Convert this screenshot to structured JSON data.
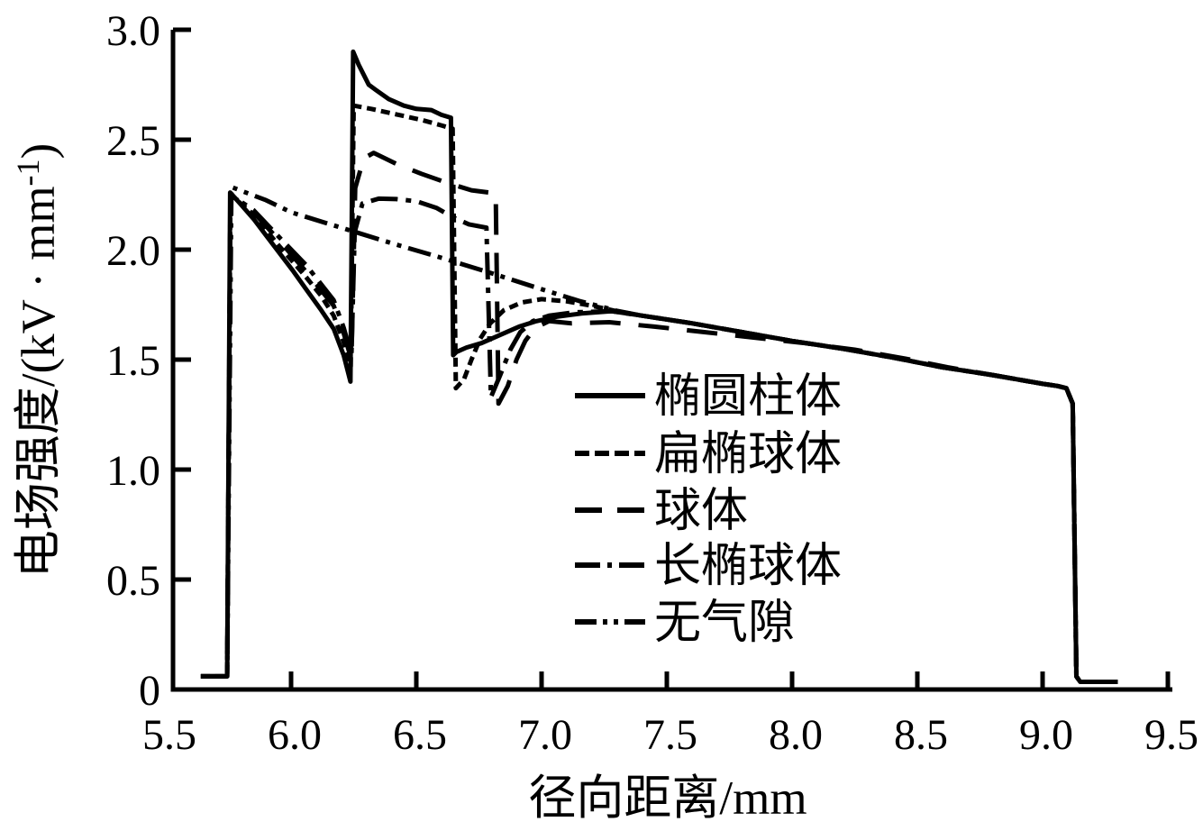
{
  "chart_data": {
    "type": "line",
    "title": "",
    "xlabel": "径向距离/mm",
    "ylabel": "电场强度/(kV·mm⁻¹)",
    "ylabel_parts": {
      "main": "电场强度/(kV · mm",
      "sup": "-1",
      "close": ")"
    },
    "xlim": [
      5.5,
      9.5
    ],
    "ylim": [
      0,
      3.0
    ],
    "grid": false,
    "legend_position": "inside-center-right",
    "x_ticks": [
      {
        "v": 5.5,
        "label": "5.5"
      },
      {
        "v": 6.0,
        "label": "6.0"
      },
      {
        "v": 6.5,
        "label": "6.5"
      },
      {
        "v": 7.0,
        "label": "7.0"
      },
      {
        "v": 7.5,
        "label": "7.5"
      },
      {
        "v": 8.0,
        "label": "8.0"
      },
      {
        "v": 8.5,
        "label": "8.5"
      },
      {
        "v": 9.0,
        "label": "9.0"
      },
      {
        "v": 9.5,
        "label": "9.5"
      }
    ],
    "y_ticks": [
      {
        "v": 0,
        "label": "0"
      },
      {
        "v": 0.5,
        "label": "0.5"
      },
      {
        "v": 1.0,
        "label": "1.0"
      },
      {
        "v": 1.5,
        "label": "1.5"
      },
      {
        "v": 2.0,
        "label": "2.0"
      },
      {
        "v": 2.5,
        "label": "2.5"
      },
      {
        "v": 3.0,
        "label": "3.0"
      }
    ],
    "legend": [
      {
        "label": "椭圆柱体",
        "style": "solid"
      },
      {
        "label": "扁椭球体",
        "style": "dotted"
      },
      {
        "label": "球体",
        "style": "dashed"
      },
      {
        "label": "长椭球体",
        "style": "dashdot"
      },
      {
        "label": "无气隙",
        "style": "dashdotdot"
      }
    ],
    "series": [
      {
        "name": "椭圆柱体",
        "style": "solid",
        "points": [
          [
            5.64,
            0.06
          ],
          [
            5.745,
            0.06
          ],
          [
            5.757,
            2.26
          ],
          [
            5.8,
            2.205
          ],
          [
            5.85,
            2.14
          ],
          [
            5.9,
            2.065
          ],
          [
            5.95,
            1.99
          ],
          [
            6.01,
            1.9
          ],
          [
            6.06,
            1.82
          ],
          [
            6.12,
            1.725
          ],
          [
            6.17,
            1.64
          ],
          [
            6.21,
            1.52
          ],
          [
            6.237,
            1.4
          ],
          [
            6.248,
            2.9
          ],
          [
            6.27,
            2.84
          ],
          [
            6.31,
            2.75
          ],
          [
            6.34,
            2.725
          ],
          [
            6.39,
            2.685
          ],
          [
            6.45,
            2.655
          ],
          [
            6.5,
            2.64
          ],
          [
            6.56,
            2.635
          ],
          [
            6.6,
            2.613
          ],
          [
            6.638,
            2.6
          ],
          [
            6.647,
            1.52
          ],
          [
            6.66,
            1.535
          ],
          [
            6.7,
            1.555
          ],
          [
            6.76,
            1.575
          ],
          [
            6.83,
            1.61
          ],
          [
            6.91,
            1.65
          ],
          [
            6.98,
            1.675
          ],
          [
            7.06,
            1.695
          ],
          [
            7.16,
            1.71
          ],
          [
            7.28,
            1.72
          ],
          [
            7.4,
            1.7
          ],
          [
            7.6,
            1.665
          ],
          [
            7.8,
            1.625
          ],
          [
            8.0,
            1.585
          ],
          [
            8.2,
            1.55
          ],
          [
            8.4,
            1.51
          ],
          [
            8.6,
            1.465
          ],
          [
            8.8,
            1.43
          ],
          [
            9.0,
            1.39
          ],
          [
            9.06,
            1.38
          ],
          [
            9.095,
            1.37
          ],
          [
            9.12,
            1.3
          ],
          [
            9.135,
            0.06
          ],
          [
            9.15,
            0.035
          ],
          [
            9.3,
            0.035
          ]
        ]
      },
      {
        "name": "扁椭球体",
        "style": "dotted",
        "points": [
          [
            5.64,
            0.06
          ],
          [
            5.745,
            0.06
          ],
          [
            5.758,
            2.25
          ],
          [
            5.85,
            2.16
          ],
          [
            5.95,
            2.02
          ],
          [
            6.06,
            1.875
          ],
          [
            6.12,
            1.79
          ],
          [
            6.17,
            1.7
          ],
          [
            6.21,
            1.58
          ],
          [
            6.238,
            1.47
          ],
          [
            6.25,
            2.655
          ],
          [
            6.32,
            2.64
          ],
          [
            6.42,
            2.615
          ],
          [
            6.52,
            2.59
          ],
          [
            6.6,
            2.565
          ],
          [
            6.645,
            2.55
          ],
          [
            6.658,
            1.37
          ],
          [
            6.69,
            1.41
          ],
          [
            6.72,
            1.5
          ],
          [
            6.755,
            1.595
          ],
          [
            6.795,
            1.665
          ],
          [
            6.85,
            1.725
          ],
          [
            6.92,
            1.76
          ],
          [
            7.0,
            1.775
          ],
          [
            7.1,
            1.765
          ],
          [
            7.2,
            1.745
          ],
          [
            7.3,
            1.72
          ],
          [
            7.4,
            1.7
          ],
          [
            7.6,
            1.665
          ],
          [
            7.8,
            1.625
          ],
          [
            8.0,
            1.585
          ],
          [
            8.2,
            1.55
          ],
          [
            8.4,
            1.51
          ],
          [
            8.6,
            1.465
          ],
          [
            8.8,
            1.43
          ],
          [
            9.0,
            1.39
          ],
          [
            9.06,
            1.38
          ],
          [
            9.095,
            1.37
          ],
          [
            9.12,
            1.3
          ],
          [
            9.135,
            0.06
          ],
          [
            9.15,
            0.035
          ],
          [
            9.3,
            0.035
          ]
        ]
      },
      {
        "name": "球体",
        "style": "dashed",
        "points": [
          [
            5.64,
            0.06
          ],
          [
            5.745,
            0.06
          ],
          [
            5.758,
            2.25
          ],
          [
            5.85,
            2.17
          ],
          [
            5.95,
            2.045
          ],
          [
            6.06,
            1.9
          ],
          [
            6.17,
            1.745
          ],
          [
            6.21,
            1.62
          ],
          [
            6.241,
            1.5
          ],
          [
            6.256,
            2.28
          ],
          [
            6.29,
            2.415
          ],
          [
            6.33,
            2.44
          ],
          [
            6.42,
            2.39
          ],
          [
            6.52,
            2.345
          ],
          [
            6.62,
            2.305
          ],
          [
            6.72,
            2.27
          ],
          [
            6.79,
            2.26
          ],
          [
            6.817,
            2.255
          ],
          [
            6.828,
            1.3
          ],
          [
            6.865,
            1.38
          ],
          [
            6.9,
            1.5
          ],
          [
            6.935,
            1.585
          ],
          [
            6.975,
            1.645
          ],
          [
            7.03,
            1.675
          ],
          [
            7.12,
            1.665
          ],
          [
            7.27,
            1.67
          ],
          [
            7.45,
            1.65
          ],
          [
            7.65,
            1.625
          ],
          [
            7.85,
            1.6
          ],
          [
            8.05,
            1.575
          ],
          [
            8.25,
            1.545
          ],
          [
            8.45,
            1.505
          ],
          [
            8.62,
            1.465
          ],
          [
            8.8,
            1.43
          ],
          [
            9.0,
            1.39
          ],
          [
            9.06,
            1.38
          ],
          [
            9.095,
            1.37
          ],
          [
            9.12,
            1.3
          ],
          [
            9.135,
            0.06
          ],
          [
            9.15,
            0.035
          ],
          [
            9.3,
            0.035
          ]
        ]
      },
      {
        "name": "长椭球体",
        "style": "dashdot",
        "points": [
          [
            5.64,
            0.06
          ],
          [
            5.745,
            0.06
          ],
          [
            5.758,
            2.25
          ],
          [
            5.85,
            2.18
          ],
          [
            5.95,
            2.06
          ],
          [
            6.06,
            1.93
          ],
          [
            6.17,
            1.77
          ],
          [
            6.21,
            1.645
          ],
          [
            6.241,
            1.52
          ],
          [
            6.254,
            2.08
          ],
          [
            6.285,
            2.21
          ],
          [
            6.35,
            2.232
          ],
          [
            6.42,
            2.23
          ],
          [
            6.5,
            2.22
          ],
          [
            6.58,
            2.19
          ],
          [
            6.65,
            2.145
          ],
          [
            6.71,
            2.115
          ],
          [
            6.78,
            2.1
          ],
          [
            6.798,
            1.33
          ],
          [
            6.835,
            1.43
          ],
          [
            6.875,
            1.545
          ],
          [
            6.915,
            1.625
          ],
          [
            6.965,
            1.675
          ],
          [
            7.03,
            1.7
          ],
          [
            7.13,
            1.715
          ],
          [
            7.28,
            1.72
          ],
          [
            7.4,
            1.7
          ],
          [
            7.6,
            1.665
          ],
          [
            7.8,
            1.625
          ],
          [
            8.0,
            1.585
          ],
          [
            8.2,
            1.55
          ],
          [
            8.4,
            1.51
          ],
          [
            8.6,
            1.465
          ],
          [
            8.8,
            1.43
          ],
          [
            9.0,
            1.39
          ],
          [
            9.06,
            1.38
          ],
          [
            9.095,
            1.37
          ],
          [
            9.12,
            1.3
          ],
          [
            9.135,
            0.06
          ],
          [
            9.15,
            0.035
          ],
          [
            9.3,
            0.035
          ]
        ]
      },
      {
        "name": "无气隙",
        "style": "dashdotdot",
        "points": [
          [
            5.64,
            0.06
          ],
          [
            5.745,
            0.06
          ],
          [
            5.762,
            2.285
          ],
          [
            5.9,
            2.225
          ],
          [
            6.0,
            2.17
          ],
          [
            6.2,
            2.1
          ],
          [
            6.4,
            2.03
          ],
          [
            6.6,
            1.963
          ],
          [
            6.8,
            1.893
          ],
          [
            7.0,
            1.82
          ],
          [
            7.15,
            1.767
          ],
          [
            7.3,
            1.722
          ],
          [
            7.4,
            1.7
          ],
          [
            7.6,
            1.665
          ],
          [
            7.8,
            1.625
          ],
          [
            8.0,
            1.585
          ],
          [
            8.2,
            1.55
          ],
          [
            8.4,
            1.51
          ],
          [
            8.6,
            1.465
          ],
          [
            8.8,
            1.43
          ],
          [
            9.0,
            1.39
          ],
          [
            9.06,
            1.38
          ],
          [
            9.095,
            1.37
          ],
          [
            9.12,
            1.3
          ],
          [
            9.135,
            0.06
          ],
          [
            9.15,
            0.035
          ],
          [
            9.3,
            0.035
          ]
        ]
      }
    ]
  }
}
